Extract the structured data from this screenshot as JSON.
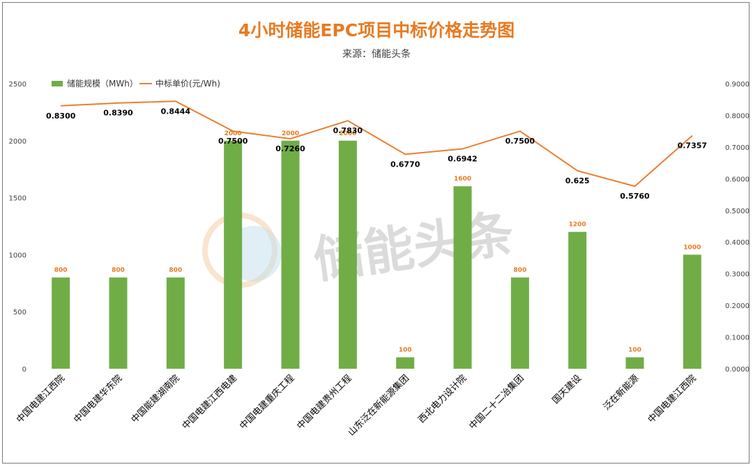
{
  "chart_data": {
    "type": "bar+line",
    "title": "4小时储能EPC项目中标价格走势图",
    "subtitle": "来源：储能头条",
    "watermark": "储能头条",
    "categories": [
      "中国电建江西院",
      "中国电建华东院",
      "中国能建湖南院",
      "中国电建江西电建",
      "中国电建重庆工程",
      "中国电建贵州工程",
      "山东泛在新能源集团",
      "西北电力设计院",
      "中国二十二冶集团",
      "国天建设",
      "泛在新能源",
      "中国电建江西院"
    ],
    "series": [
      {
        "name": "储能规模（MWh）",
        "type": "bar",
        "axis": "left",
        "color": "#70ad47",
        "values": [
          800,
          800,
          800,
          2000,
          2000,
          2000,
          100,
          1600,
          800,
          1200,
          100,
          1000
        ]
      },
      {
        "name": "中标单价(元/Wh)",
        "type": "line",
        "axis": "right",
        "color": "#ed7d31",
        "values": [
          0.83,
          0.839,
          0.8444,
          0.75,
          0.726,
          0.783,
          0.677,
          0.6942,
          0.75,
          0.625,
          0.576,
          0.7357
        ],
        "labels": [
          "0.8300",
          "0.8390",
          "0.8444",
          "0.7500",
          "0.7260",
          "0.7830",
          "0.6770",
          "0.6942",
          "0.7500",
          "0.625",
          "0.5760",
          "0.7357"
        ]
      }
    ],
    "y_left": {
      "ylim": [
        0,
        2500
      ],
      "ticks": [
        "0",
        "500",
        "1000",
        "1500",
        "2000",
        "2500"
      ]
    },
    "y_right": {
      "ylim": [
        0,
        0.9
      ],
      "ticks": [
        "0.0000",
        "0.1000",
        "0.2000",
        "0.3000",
        "0.4000",
        "0.5000",
        "0.6000",
        "0.7000",
        "0.8000",
        "0.9000"
      ]
    },
    "legend_position": "top-left",
    "grid": false,
    "colors": {
      "title": "#e87a22",
      "bar": "#70ad47",
      "line": "#ed7d31",
      "bar_label": "#e87a22"
    }
  }
}
